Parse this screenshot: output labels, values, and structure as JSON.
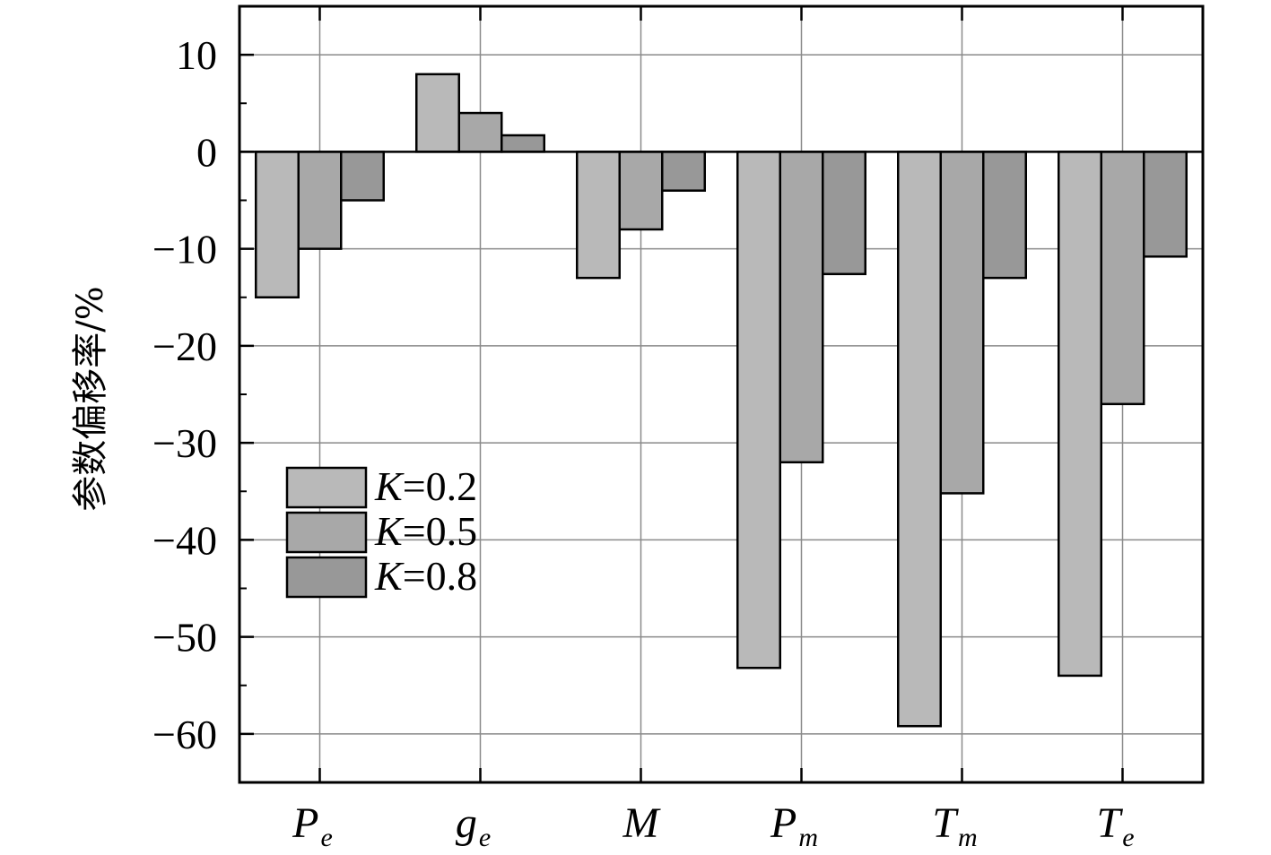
{
  "chart_data": {
    "type": "bar",
    "ylabel": "参数偏移率/%",
    "ylim": [
      -65,
      15
    ],
    "yticks": [
      "10",
      "0",
      "−10",
      "−20",
      "−30",
      "−40",
      "−50",
      "−60"
    ],
    "categories": [
      {
        "main": "P",
        "sub": "e"
      },
      {
        "main": "g",
        "sub": "e"
      },
      {
        "main": "M",
        "sub": ""
      },
      {
        "main": "P",
        "sub": "m"
      },
      {
        "main": "T",
        "sub": "m"
      },
      {
        "main": "T",
        "sub": "e"
      }
    ],
    "series": [
      {
        "name": "K=0.2",
        "k_label": "K",
        "eq_label": "=0.2",
        "color": "#b9b9b9",
        "values": [
          -15,
          8,
          -13,
          -53.2,
          -59.2,
          -54
        ]
      },
      {
        "name": "K=0.5",
        "k_label": "K",
        "eq_label": "=0.5",
        "color": "#a8a8a8",
        "values": [
          -10,
          4,
          -8,
          -32,
          -35.2,
          -26
        ]
      },
      {
        "name": "K=0.8",
        "k_label": "K",
        "eq_label": "=0.8",
        "color": "#989898",
        "values": [
          -5,
          1.7,
          -4,
          -12.6,
          -13,
          -10.8
        ]
      }
    ],
    "grid": true,
    "legend_position": "lower-left"
  }
}
